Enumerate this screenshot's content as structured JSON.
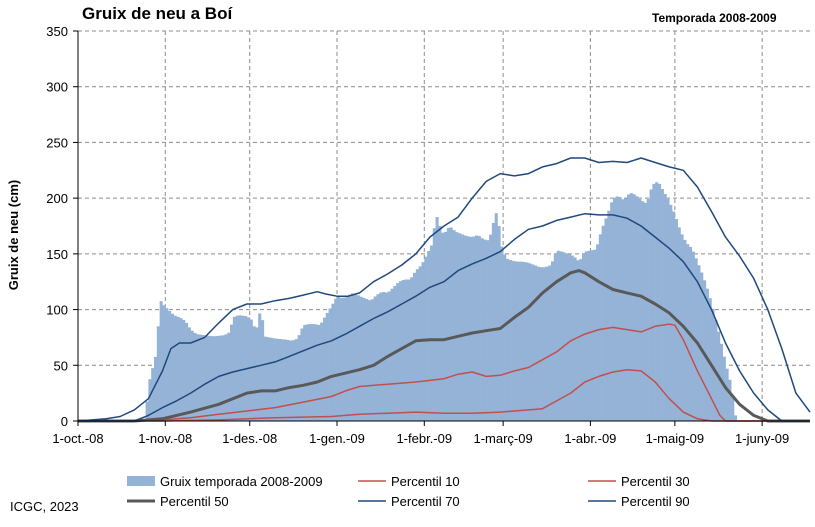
{
  "chart_data": {
    "type": "bar",
    "title": "Gruix de neu a Boí",
    "subtitle": "Temporada 2008-2009",
    "ylabel": "Gruix de neu (cm)",
    "xlabel": "",
    "ylim": [
      0,
      350
    ],
    "yticks": [
      0,
      50,
      100,
      150,
      200,
      250,
      300,
      350
    ],
    "x_range_days": [
      0,
      260
    ],
    "xticks": [
      {
        "label": "1-oct.-08",
        "day": 0
      },
      {
        "label": "1-nov.-08",
        "day": 31
      },
      {
        "label": "1-des.-08",
        "day": 61
      },
      {
        "label": "1-gen.-09",
        "day": 92
      },
      {
        "label": "1-febr.-09",
        "day": 123
      },
      {
        "label": "1-març-09",
        "day": 151
      },
      {
        "label": "1-abr.-09",
        "day": 182
      },
      {
        "label": "1-maig-09",
        "day": 212
      },
      {
        "label": "1-juny-09",
        "day": 243
      }
    ],
    "grid": true,
    "legend_position": "bottom",
    "bars": {
      "name": "Gruix temporada 2008-2009",
      "color": "#95b3d7",
      "points": [
        [
          0,
          0
        ],
        [
          24,
          0
        ],
        [
          25,
          35
        ],
        [
          26,
          40
        ],
        [
          27,
          55
        ],
        [
          28,
          60
        ],
        [
          29,
          110
        ],
        [
          30,
          105
        ],
        [
          32,
          100
        ],
        [
          34,
          95
        ],
        [
          36,
          93
        ],
        [
          38,
          90
        ],
        [
          40,
          82
        ],
        [
          42,
          78
        ],
        [
          45,
          77
        ],
        [
          48,
          76
        ],
        [
          52,
          77
        ],
        [
          54,
          80
        ],
        [
          55,
          93
        ],
        [
          57,
          95
        ],
        [
          60,
          94
        ],
        [
          62,
          90
        ],
        [
          63,
          80
        ],
        [
          64,
          88
        ],
        [
          65,
          105
        ],
        [
          66,
          76
        ],
        [
          70,
          74
        ],
        [
          74,
          73
        ],
        [
          76,
          72
        ],
        [
          78,
          74
        ],
        [
          80,
          86
        ],
        [
          82,
          87
        ],
        [
          84,
          87
        ],
        [
          86,
          86
        ],
        [
          88,
          95
        ],
        [
          90,
          103
        ],
        [
          92,
          112
        ],
        [
          94,
          110
        ],
        [
          96,
          113
        ],
        [
          98,
          115
        ],
        [
          100,
          112
        ],
        [
          102,
          110
        ],
        [
          104,
          108
        ],
        [
          106,
          113
        ],
        [
          108,
          116
        ],
        [
          110,
          115
        ],
        [
          112,
          120
        ],
        [
          114,
          125
        ],
        [
          116,
          127
        ],
        [
          118,
          127
        ],
        [
          120,
          135
        ],
        [
          122,
          140
        ],
        [
          124,
          150
        ],
        [
          126,
          160
        ],
        [
          127,
          186
        ],
        [
          128,
          180
        ],
        [
          129,
          170
        ],
        [
          130,
          168
        ],
        [
          132,
          175
        ],
        [
          134,
          170
        ],
        [
          136,
          168
        ],
        [
          138,
          166
        ],
        [
          140,
          165
        ],
        [
          142,
          167
        ],
        [
          144,
          163
        ],
        [
          146,
          162
        ],
        [
          148,
          183
        ],
        [
          149,
          190
        ],
        [
          150,
          160
        ],
        [
          152,
          146
        ],
        [
          154,
          144
        ],
        [
          156,
          143
        ],
        [
          158,
          143
        ],
        [
          160,
          142
        ],
        [
          162,
          140
        ],
        [
          164,
          138
        ],
        [
          166,
          138
        ],
        [
          168,
          140
        ],
        [
          170,
          153
        ],
        [
          172,
          152
        ],
        [
          174,
          150
        ],
        [
          176,
          148
        ],
        [
          178,
          143
        ],
        [
          180,
          152
        ],
        [
          182,
          153
        ],
        [
          184,
          154
        ],
        [
          186,
          172
        ],
        [
          188,
          185
        ],
        [
          190,
          200
        ],
        [
          192,
          202
        ],
        [
          194,
          198
        ],
        [
          196,
          205
        ],
        [
          198,
          203
        ],
        [
          200,
          198
        ],
        [
          202,
          195
        ],
        [
          204,
          212
        ],
        [
          206,
          215
        ],
        [
          208,
          206
        ],
        [
          210,
          197
        ],
        [
          212,
          185
        ],
        [
          214,
          170
        ],
        [
          216,
          160
        ],
        [
          218,
          155
        ],
        [
          220,
          143
        ],
        [
          222,
          130
        ],
        [
          224,
          115
        ],
        [
          226,
          96
        ],
        [
          228,
          75
        ],
        [
          230,
          52
        ],
        [
          232,
          32
        ],
        [
          233,
          10
        ],
        [
          234,
          0
        ],
        [
          260,
          0
        ]
      ]
    },
    "series": [
      {
        "name": "Percentil 10",
        "color": "#c0504d",
        "width": 1.5,
        "points": [
          [
            0,
            0
          ],
          [
            30,
            0
          ],
          [
            50,
            1
          ],
          [
            70,
            3
          ],
          [
            90,
            4
          ],
          [
            100,
            6
          ],
          [
            110,
            7
          ],
          [
            120,
            8
          ],
          [
            130,
            7
          ],
          [
            140,
            7
          ],
          [
            150,
            8
          ],
          [
            160,
            10
          ],
          [
            165,
            11
          ],
          [
            170,
            18
          ],
          [
            175,
            25
          ],
          [
            180,
            35
          ],
          [
            185,
            40
          ],
          [
            190,
            44
          ],
          [
            195,
            46
          ],
          [
            200,
            45
          ],
          [
            205,
            35
          ],
          [
            210,
            20
          ],
          [
            215,
            8
          ],
          [
            220,
            2
          ],
          [
            225,
            0
          ],
          [
            260,
            0
          ]
        ]
      },
      {
        "name": "Percentil 30",
        "color": "#c0504d",
        "width": 1.5,
        "points": [
          [
            0,
            0
          ],
          [
            20,
            0
          ],
          [
            30,
            1
          ],
          [
            40,
            3
          ],
          [
            50,
            6
          ],
          [
            60,
            9
          ],
          [
            70,
            12
          ],
          [
            80,
            17
          ],
          [
            90,
            22
          ],
          [
            95,
            27
          ],
          [
            100,
            31
          ],
          [
            110,
            33
          ],
          [
            120,
            35
          ],
          [
            130,
            38
          ],
          [
            135,
            42
          ],
          [
            140,
            44
          ],
          [
            145,
            40
          ],
          [
            150,
            41
          ],
          [
            155,
            45
          ],
          [
            160,
            48
          ],
          [
            165,
            55
          ],
          [
            170,
            62
          ],
          [
            175,
            72
          ],
          [
            180,
            78
          ],
          [
            185,
            82
          ],
          [
            190,
            84
          ],
          [
            195,
            82
          ],
          [
            200,
            80
          ],
          [
            205,
            85
          ],
          [
            210,
            87
          ],
          [
            212,
            86
          ],
          [
            215,
            73
          ],
          [
            220,
            45
          ],
          [
            225,
            20
          ],
          [
            228,
            5
          ],
          [
            230,
            0
          ],
          [
            260,
            0
          ]
        ]
      },
      {
        "name": "Percentil 50",
        "color": "#595959",
        "width": 3,
        "points": [
          [
            0,
            0
          ],
          [
            20,
            0
          ],
          [
            30,
            2
          ],
          [
            40,
            8
          ],
          [
            50,
            15
          ],
          [
            60,
            25
          ],
          [
            65,
            27
          ],
          [
            70,
            27
          ],
          [
            75,
            30
          ],
          [
            80,
            32
          ],
          [
            85,
            35
          ],
          [
            90,
            40
          ],
          [
            95,
            43
          ],
          [
            100,
            46
          ],
          [
            105,
            50
          ],
          [
            110,
            58
          ],
          [
            115,
            65
          ],
          [
            120,
            72
          ],
          [
            125,
            73
          ],
          [
            130,
            73
          ],
          [
            135,
            76
          ],
          [
            140,
            79
          ],
          [
            145,
            81
          ],
          [
            150,
            83
          ],
          [
            155,
            93
          ],
          [
            160,
            102
          ],
          [
            165,
            115
          ],
          [
            170,
            125
          ],
          [
            175,
            133
          ],
          [
            178,
            135
          ],
          [
            180,
            133
          ],
          [
            185,
            125
          ],
          [
            190,
            118
          ],
          [
            195,
            115
          ],
          [
            200,
            112
          ],
          [
            205,
            105
          ],
          [
            210,
            97
          ],
          [
            215,
            85
          ],
          [
            220,
            70
          ],
          [
            225,
            50
          ],
          [
            230,
            30
          ],
          [
            235,
            15
          ],
          [
            240,
            5
          ],
          [
            245,
            0
          ],
          [
            260,
            0
          ]
        ]
      },
      {
        "name": "Percentil 70",
        "color": "#1f497d",
        "width": 1.5,
        "points": [
          [
            0,
            0
          ],
          [
            20,
            0
          ],
          [
            25,
            5
          ],
          [
            30,
            12
          ],
          [
            35,
            18
          ],
          [
            40,
            25
          ],
          [
            45,
            33
          ],
          [
            50,
            40
          ],
          [
            55,
            44
          ],
          [
            60,
            47
          ],
          [
            65,
            50
          ],
          [
            70,
            53
          ],
          [
            75,
            58
          ],
          [
            80,
            63
          ],
          [
            85,
            68
          ],
          [
            90,
            72
          ],
          [
            95,
            78
          ],
          [
            100,
            85
          ],
          [
            105,
            92
          ],
          [
            110,
            98
          ],
          [
            115,
            105
          ],
          [
            120,
            112
          ],
          [
            125,
            120
          ],
          [
            130,
            125
          ],
          [
            135,
            135
          ],
          [
            140,
            141
          ],
          [
            145,
            146
          ],
          [
            150,
            152
          ],
          [
            155,
            163
          ],
          [
            160,
            172
          ],
          [
            165,
            175
          ],
          [
            170,
            180
          ],
          [
            175,
            183
          ],
          [
            180,
            186
          ],
          [
            185,
            185
          ],
          [
            190,
            185
          ],
          [
            195,
            182
          ],
          [
            200,
            175
          ],
          [
            205,
            165
          ],
          [
            210,
            155
          ],
          [
            215,
            143
          ],
          [
            220,
            125
          ],
          [
            225,
            100
          ],
          [
            230,
            70
          ],
          [
            235,
            45
          ],
          [
            240,
            25
          ],
          [
            245,
            10
          ],
          [
            250,
            0
          ],
          [
            260,
            0
          ]
        ]
      },
      {
        "name": "Percentil 90",
        "color": "#1f497d",
        "width": 1.5,
        "points": [
          [
            0,
            0
          ],
          [
            10,
            2
          ],
          [
            15,
            4
          ],
          [
            20,
            10
          ],
          [
            25,
            20
          ],
          [
            30,
            45
          ],
          [
            33,
            65
          ],
          [
            36,
            70
          ],
          [
            40,
            70
          ],
          [
            45,
            75
          ],
          [
            50,
            88
          ],
          [
            55,
            100
          ],
          [
            60,
            105
          ],
          [
            65,
            105
          ],
          [
            70,
            108
          ],
          [
            75,
            110
          ],
          [
            80,
            113
          ],
          [
            85,
            116
          ],
          [
            88,
            114
          ],
          [
            92,
            112
          ],
          [
            96,
            112
          ],
          [
            100,
            115
          ],
          [
            105,
            125
          ],
          [
            110,
            132
          ],
          [
            115,
            140
          ],
          [
            120,
            150
          ],
          [
            125,
            165
          ],
          [
            130,
            175
          ],
          [
            135,
            183
          ],
          [
            140,
            200
          ],
          [
            145,
            215
          ],
          [
            150,
            222
          ],
          [
            155,
            220
          ],
          [
            160,
            222
          ],
          [
            165,
            228
          ],
          [
            170,
            231
          ],
          [
            175,
            236
          ],
          [
            180,
            236
          ],
          [
            185,
            232
          ],
          [
            190,
            233
          ],
          [
            195,
            232
          ],
          [
            200,
            236
          ],
          [
            205,
            232
          ],
          [
            210,
            228
          ],
          [
            215,
            225
          ],
          [
            220,
            210
          ],
          [
            225,
            188
          ],
          [
            230,
            165
          ],
          [
            235,
            148
          ],
          [
            240,
            128
          ],
          [
            245,
            100
          ],
          [
            250,
            65
          ],
          [
            255,
            25
          ],
          [
            260,
            8
          ]
        ]
      }
    ],
    "annotations": [
      "ICGC, 2023"
    ]
  }
}
